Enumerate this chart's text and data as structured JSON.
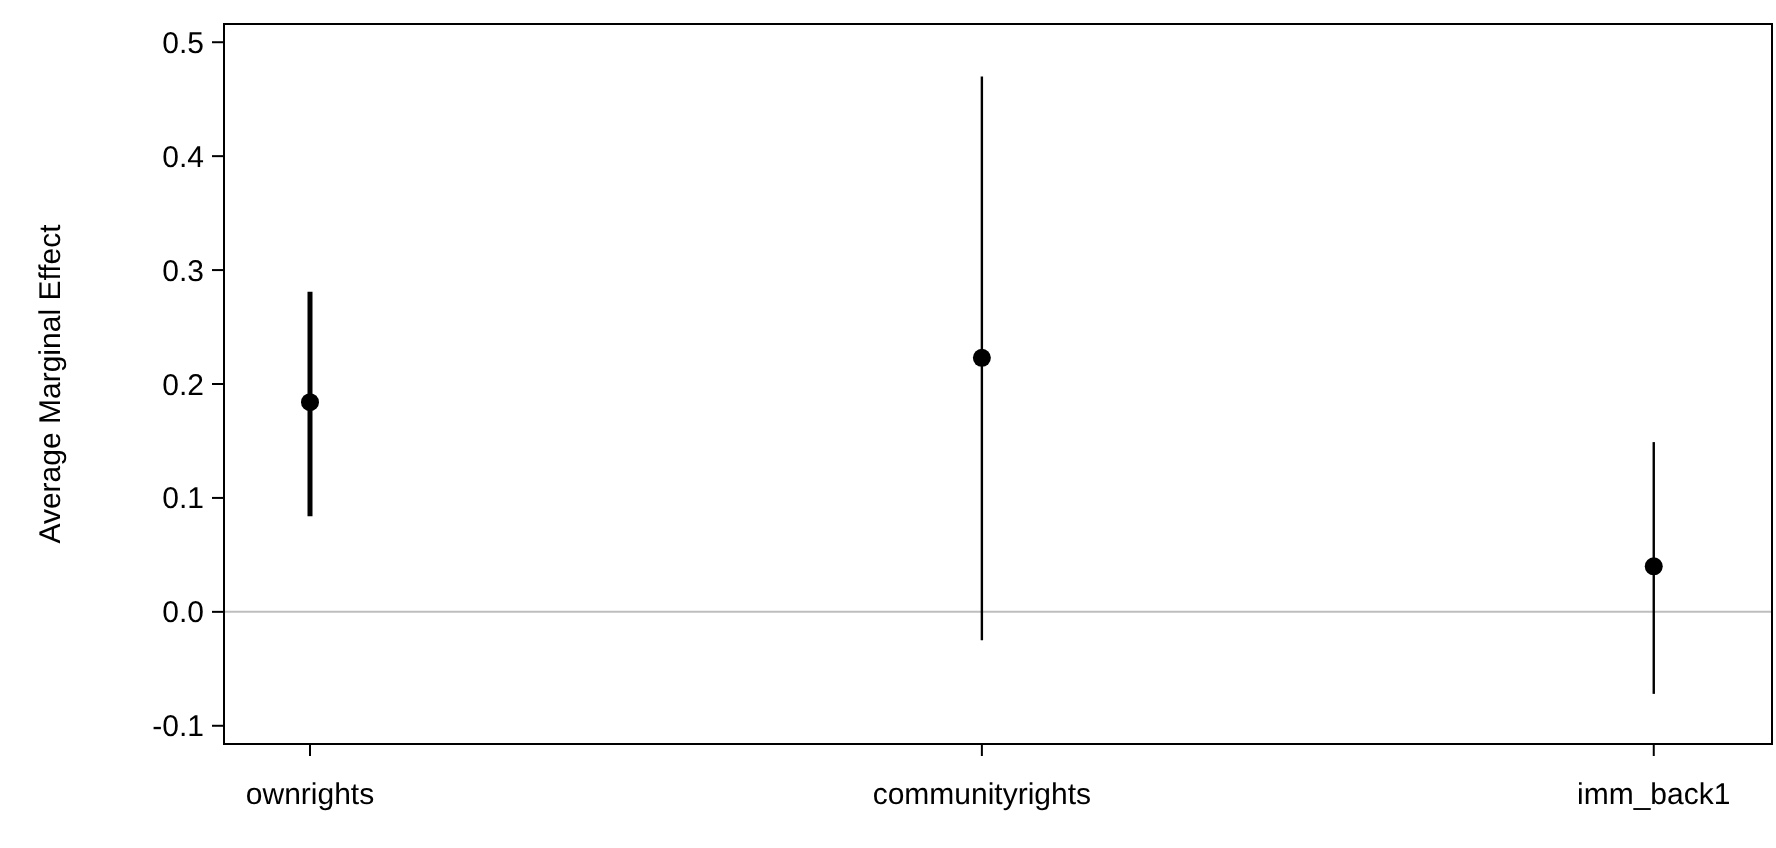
{
  "chart_data": {
    "type": "scatter",
    "ylabel": "Average Marginal Effect",
    "categories": [
      "ownrights",
      "communityrights",
      "imm_back1"
    ],
    "values": [
      0.184,
      0.223,
      0.04
    ],
    "errors": [
      [
        0.084,
        0.281
      ],
      [
        -0.025,
        0.47
      ],
      [
        -0.072,
        0.149
      ]
    ],
    "color": "#000000",
    "marker": "circle",
    "ylim": [
      -0.116,
      0.516
    ],
    "yticks": [
      -0.1,
      {
        "value": 0,
        "label": "0.0"
      },
      0.1,
      0.2,
      0.3,
      0.4,
      0.5
    ],
    "ref_lines": [
      {
        "axis": "y",
        "value": 0,
        "color": "#bebebe"
      }
    ],
    "grid": false
  }
}
